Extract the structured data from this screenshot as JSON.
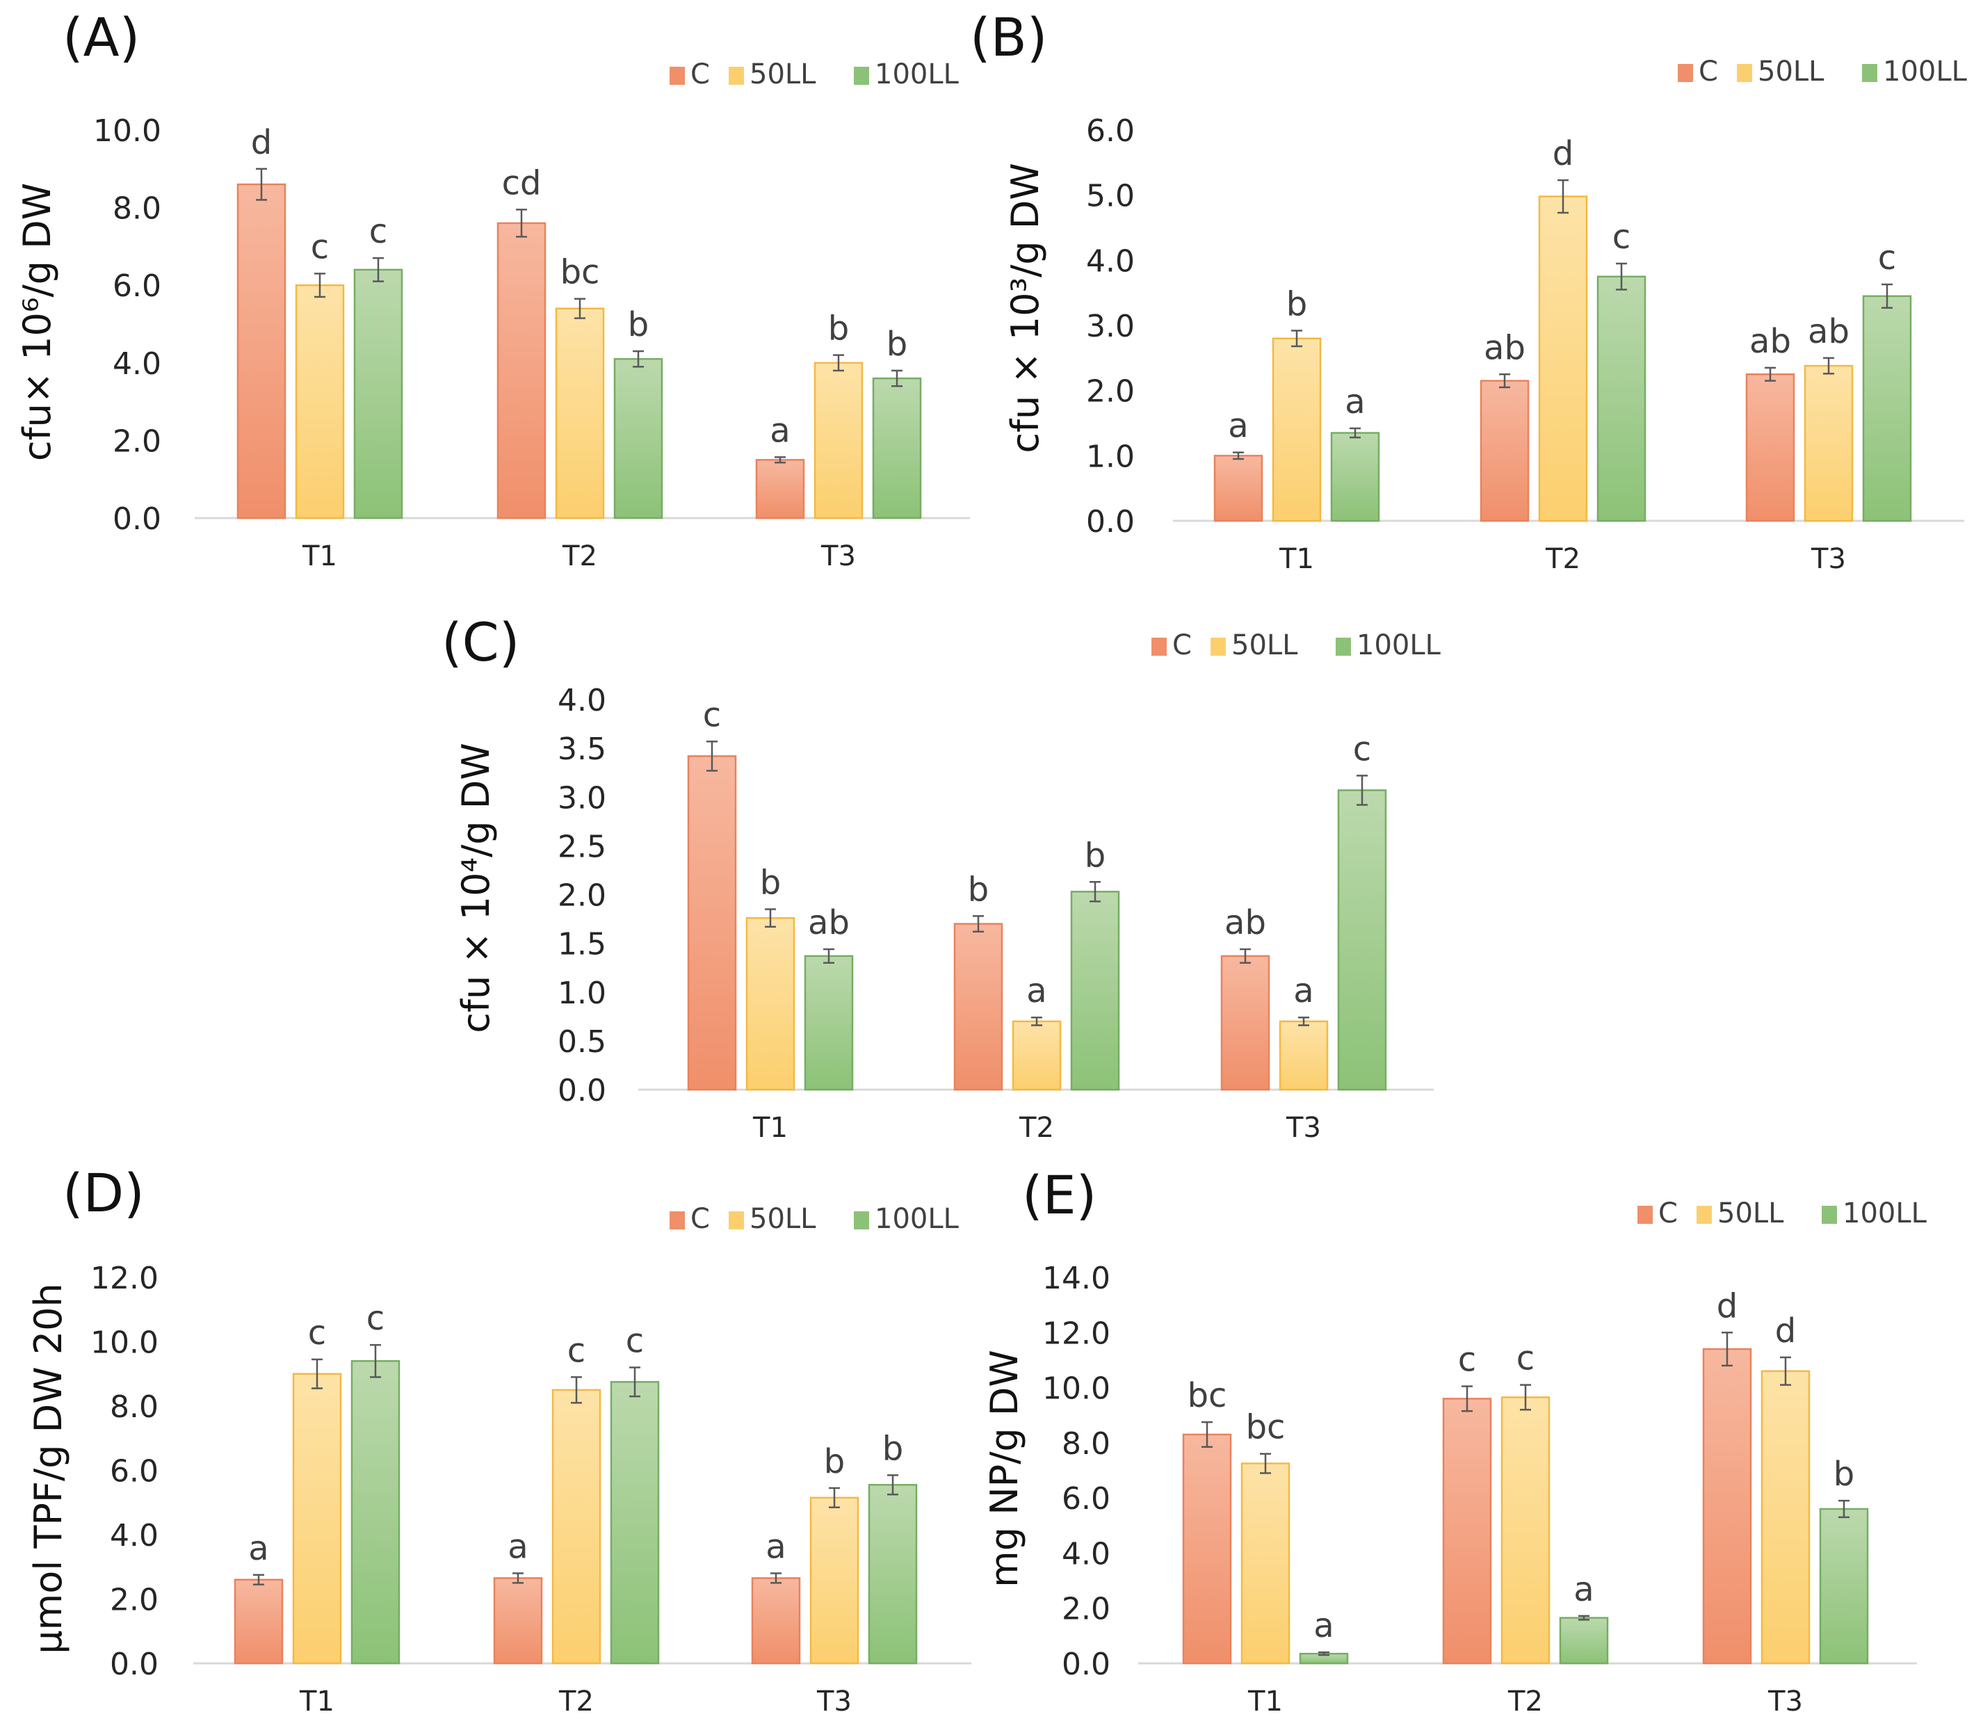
{
  "colors": {
    "C": [
      "#f7b89f",
      "#f08f6a"
    ],
    "50LL": [
      "#fde3a8",
      "#fccf6e"
    ],
    "100LL": [
      "#bcd9ad",
      "#8cc277"
    ],
    "C_edge": "#e9825d",
    "50LL_edge": "#f4b942",
    "100LL_edge": "#76ad63"
  },
  "chart_data": [
    {
      "type": "bar",
      "panel": "(A)",
      "categories": [
        "T1",
        "T2",
        "T3"
      ],
      "series": [
        {
          "name": "C",
          "values": [
            8.6,
            7.6,
            1.5
          ],
          "errors": [
            0.4,
            0.35,
            0.07
          ],
          "letters": [
            "d",
            "cd",
            "a"
          ]
        },
        {
          "name": "50LL",
          "values": [
            6.0,
            5.4,
            4.0
          ],
          "errors": [
            0.3,
            0.25,
            0.2
          ],
          "letters": [
            "c",
            "bc",
            "b"
          ]
        },
        {
          "name": "100LL",
          "values": [
            6.4,
            4.1,
            3.6
          ],
          "errors": [
            0.3,
            0.2,
            0.2
          ],
          "letters": [
            "c",
            "b",
            "b"
          ]
        }
      ],
      "ylabel": "cfu× 10⁶/g DW",
      "ylim": [
        0,
        10
      ],
      "yticks": [
        "0.0",
        "2.0",
        "4.0",
        "6.0",
        "8.0",
        "10.0"
      ],
      "legend": [
        "C",
        "50LL",
        "100LL"
      ]
    },
    {
      "type": "bar",
      "panel": "(B)",
      "categories": [
        "T1",
        "T2",
        "T3"
      ],
      "series": [
        {
          "name": "C",
          "values": [
            1.0,
            2.15,
            2.25
          ],
          "errors": [
            0.05,
            0.1,
            0.1
          ],
          "letters": [
            "a",
            "ab",
            "ab"
          ]
        },
        {
          "name": "50LL",
          "values": [
            2.8,
            4.98,
            2.38
          ],
          "errors": [
            0.12,
            0.25,
            0.12
          ],
          "letters": [
            "b",
            "d",
            "ab"
          ]
        },
        {
          "name": "100LL",
          "values": [
            1.35,
            3.75,
            3.45
          ],
          "errors": [
            0.07,
            0.2,
            0.18
          ],
          "letters": [
            "a",
            "c",
            "c"
          ]
        }
      ],
      "ylabel": "cfu × 10³/g DW",
      "ylim": [
        0,
        6
      ],
      "yticks": [
        "0.0",
        "1.0",
        "2.0",
        "3.0",
        "4.0",
        "5.0",
        "6.0"
      ],
      "legend": [
        "C",
        "50LL",
        "100LL"
      ]
    },
    {
      "type": "bar",
      "panel": "(C)",
      "categories": [
        "T1",
        "T2",
        "T3"
      ],
      "series": [
        {
          "name": "C",
          "values": [
            3.42,
            1.7,
            1.37
          ],
          "errors": [
            0.15,
            0.08,
            0.07
          ],
          "letters": [
            "c",
            "b",
            "ab"
          ]
        },
        {
          "name": "50LL",
          "values": [
            1.76,
            0.7,
            0.7
          ],
          "errors": [
            0.09,
            0.04,
            0.04
          ],
          "letters": [
            "b",
            "a",
            "a"
          ]
        },
        {
          "name": "100LL",
          "values": [
            1.37,
            2.03,
            3.07
          ],
          "errors": [
            0.07,
            0.1,
            0.15
          ],
          "letters": [
            "ab",
            "b",
            "c"
          ]
        }
      ],
      "ylabel": "cfu × 10⁴/g DW",
      "ylim": [
        0,
        4
      ],
      "yticks": [
        "0.0",
        "0.5",
        "1.0",
        "1.5",
        "2.0",
        "2.5",
        "3.0",
        "3.5",
        "4.0"
      ],
      "legend": [
        "C",
        "50LL",
        "100LL"
      ]
    },
    {
      "type": "bar",
      "panel": "(D)",
      "categories": [
        "T1",
        "T2",
        "T3"
      ],
      "series": [
        {
          "name": "C",
          "values": [
            2.6,
            2.65,
            2.65
          ],
          "errors": [
            0.15,
            0.15,
            0.15
          ],
          "letters": [
            "a",
            "a",
            "a"
          ]
        },
        {
          "name": "50LL",
          "values": [
            9.0,
            8.5,
            5.15
          ],
          "errors": [
            0.45,
            0.4,
            0.3
          ],
          "letters": [
            "c",
            "c",
            "b"
          ]
        },
        {
          "name": "100LL",
          "values": [
            9.4,
            8.75,
            5.55
          ],
          "errors": [
            0.5,
            0.45,
            0.3
          ],
          "letters": [
            "c",
            "c",
            "b"
          ]
        }
      ],
      "ylabel": "μmol TPF/g DW 20h",
      "ylim": [
        0,
        12
      ],
      "yticks": [
        "0.0",
        "2.0",
        "4.0",
        "6.0",
        "8.0",
        "10.0",
        "12.0"
      ],
      "legend": [
        "C",
        "50LL",
        "100LL"
      ]
    },
    {
      "type": "bar",
      "panel": "(E)",
      "categories": [
        "T1",
        "T2",
        "T3"
      ],
      "series": [
        {
          "name": "C",
          "values": [
            8.3,
            9.6,
            11.4
          ],
          "errors": [
            0.45,
            0.45,
            0.6
          ],
          "letters": [
            "bc",
            "c",
            "d"
          ]
        },
        {
          "name": "50LL",
          "values": [
            7.25,
            9.65,
            10.6
          ],
          "errors": [
            0.35,
            0.45,
            0.5
          ],
          "letters": [
            "bc",
            "c",
            "d"
          ]
        },
        {
          "name": "100LL",
          "values": [
            0.35,
            1.65,
            5.6
          ],
          "errors": [
            0.05,
            0.07,
            0.3
          ],
          "letters": [
            "a",
            "a",
            "b"
          ]
        }
      ],
      "ylabel": "mg NP/g DW",
      "ylim": [
        0,
        14
      ],
      "yticks": [
        "0.0",
        "2.0",
        "4.0",
        "6.0",
        "8.0",
        "10.0",
        "12.0",
        "14.0"
      ],
      "legend": [
        "C",
        "50LL",
        "100LL"
      ]
    }
  ]
}
